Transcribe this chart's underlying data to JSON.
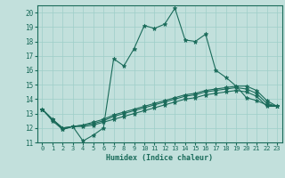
{
  "title": "",
  "xlabel": "Humidex (Indice chaleur)",
  "bg_color": "#c2e0dc",
  "line_color": "#1a6b5a",
  "grid_color": "#9ecec8",
  "xlim": [
    -0.5,
    23.5
  ],
  "ylim": [
    11,
    20.5
  ],
  "yticks": [
    11,
    12,
    13,
    14,
    15,
    16,
    17,
    18,
    19,
    20
  ],
  "xticks": [
    0,
    1,
    2,
    3,
    4,
    5,
    6,
    7,
    8,
    9,
    10,
    11,
    12,
    13,
    14,
    15,
    16,
    17,
    18,
    19,
    20,
    21,
    22,
    23
  ],
  "series": [
    [
      13.3,
      12.6,
      11.9,
      12.1,
      11.1,
      11.5,
      12.0,
      16.8,
      16.3,
      17.5,
      19.1,
      18.9,
      19.2,
      20.3,
      18.1,
      18.0,
      18.5,
      16.0,
      15.5,
      14.9,
      14.1,
      13.9,
      13.6,
      13.5
    ],
    [
      13.3,
      12.6,
      12.0,
      12.1,
      12.2,
      12.4,
      12.6,
      12.9,
      13.1,
      13.3,
      13.5,
      13.7,
      13.9,
      14.1,
      14.3,
      14.4,
      14.6,
      14.7,
      14.8,
      14.9,
      14.9,
      14.6,
      13.9,
      13.5
    ],
    [
      13.3,
      12.6,
      12.0,
      12.1,
      12.2,
      12.3,
      12.5,
      12.8,
      13.0,
      13.2,
      13.4,
      13.6,
      13.8,
      14.0,
      14.2,
      14.3,
      14.5,
      14.6,
      14.7,
      14.8,
      14.7,
      14.4,
      13.7,
      13.5
    ],
    [
      13.3,
      12.5,
      11.9,
      12.1,
      12.1,
      12.2,
      12.4,
      12.6,
      12.8,
      13.0,
      13.2,
      13.4,
      13.6,
      13.8,
      14.0,
      14.1,
      14.3,
      14.4,
      14.5,
      14.6,
      14.5,
      14.2,
      13.5,
      13.5
    ]
  ]
}
